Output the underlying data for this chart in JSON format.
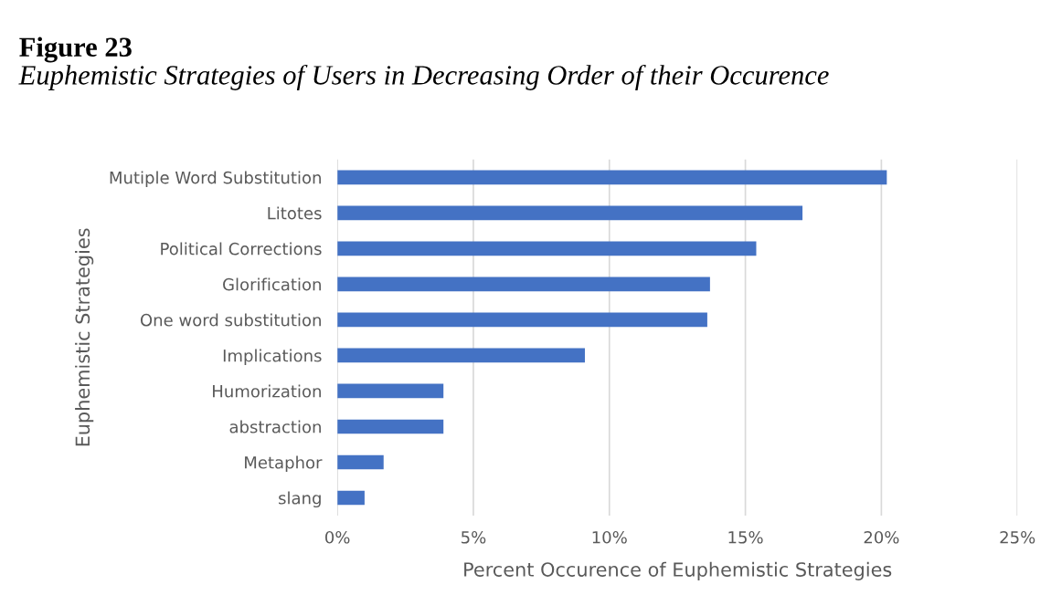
{
  "chart_data": {
    "type": "bar",
    "orientation": "horizontal",
    "title": "Figure 23",
    "subtitle": "Euphemistic Strategies of Users in Decreasing Order of their Occurence",
    "xlabel": "Percent Occurence of Euphemistic Strategies",
    "ylabel": "Euphemistic Strategies",
    "categories": [
      "Mutiple Word Substitution",
      "Litotes",
      "Political Corrections",
      "Glorification",
      "One word substitution",
      "Implications",
      "Humorization",
      "abstraction",
      "Metaphor",
      "slang"
    ],
    "values": [
      20.2,
      17.1,
      15.4,
      13.7,
      13.6,
      9.1,
      3.9,
      3.9,
      1.7,
      1.0
    ],
    "color": "#4472c4",
    "xlim": [
      0,
      25
    ],
    "xticks": [
      {
        "value": 0,
        "label": "0%"
      },
      {
        "value": 5,
        "label": "5%"
      },
      {
        "value": 10,
        "label": "10%"
      },
      {
        "value": 15,
        "label": "15%"
      },
      {
        "value": 20,
        "label": "20%"
      },
      {
        "value": 25,
        "label": "25%"
      }
    ],
    "grid": "x",
    "legend": false
  }
}
